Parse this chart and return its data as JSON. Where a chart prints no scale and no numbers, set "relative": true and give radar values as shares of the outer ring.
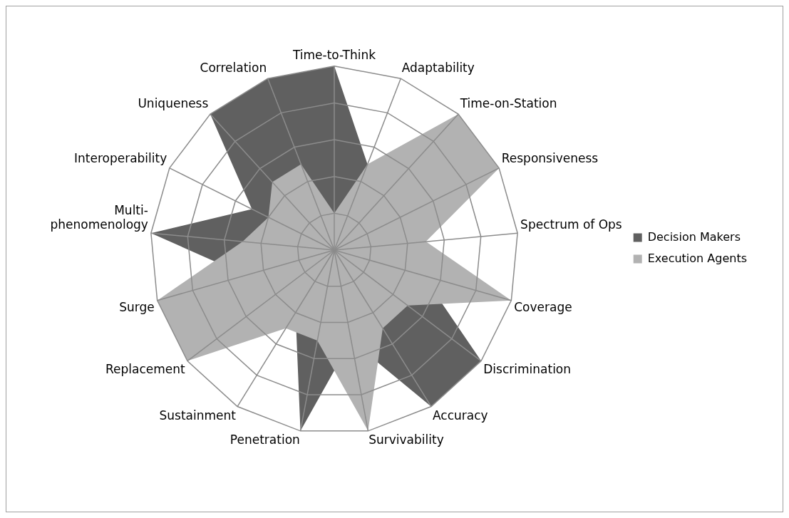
{
  "chart_data": {
    "type": "radar",
    "relative": true,
    "grid": true,
    "legend": "right",
    "categories": [
      "Time-to-Think",
      "Adaptability",
      "Time-on-Station",
      "Responsiveness",
      "Spectrum of Ops",
      "Coverage",
      "Discrimination",
      "Accuracy",
      "Survivability",
      "Penetration",
      "Sustainment",
      "Replacement",
      "Surge",
      "Multi-phenomenology",
      "Interoperability",
      "Uniqueness",
      "Correlation"
    ],
    "series": [
      {
        "name": "Decision Makers",
        "color": "#606060",
        "values": [
          1,
          0.5,
          0.5,
          0.5,
          0.4,
          0.5,
          1,
          1,
          0.5,
          1,
          0.4,
          0.5,
          0.5,
          1,
          0.5,
          1,
          1
        ]
      },
      {
        "name": "Execution Agents",
        "color": "#b2b2b2",
        "values": [
          0.2,
          0.5,
          1,
          1,
          0.5,
          1,
          0.5,
          0.5,
          1,
          0.5,
          0.5,
          1,
          1,
          0.5,
          0.4,
          0.5,
          0.5
        ]
      }
    ]
  }
}
